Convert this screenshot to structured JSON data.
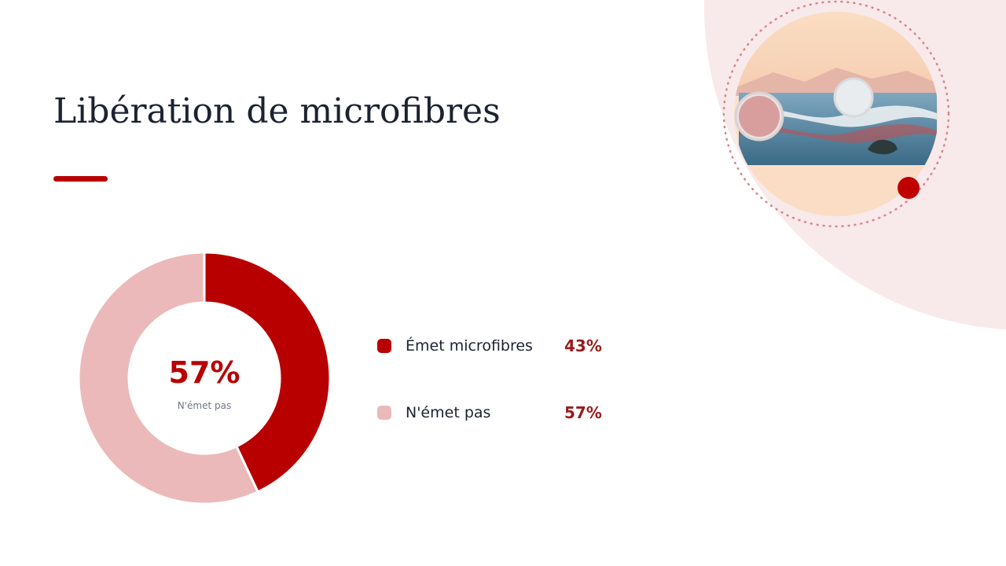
{
  "title": "Libération de microfibres",
  "chart_data": {
    "type": "pie",
    "donut": true,
    "slices": [
      {
        "label": "Émet microfibres",
        "value": 43,
        "value_label": "43%",
        "color": "#b80000"
      },
      {
        "label": "N'émet pas",
        "value": 57,
        "value_label": "57%",
        "color": "#ebb9b9"
      }
    ],
    "center": {
      "value": "57%",
      "label": "N'émet pas"
    },
    "legend_position": "right"
  },
  "colors": {
    "accent": "#b80000",
    "accent_light": "#ebb9b9",
    "title_text": "#1c2230",
    "background_blob": "#f8e9ea"
  },
  "illustration": {
    "icon": "ocean-microfibres-illustration"
  }
}
